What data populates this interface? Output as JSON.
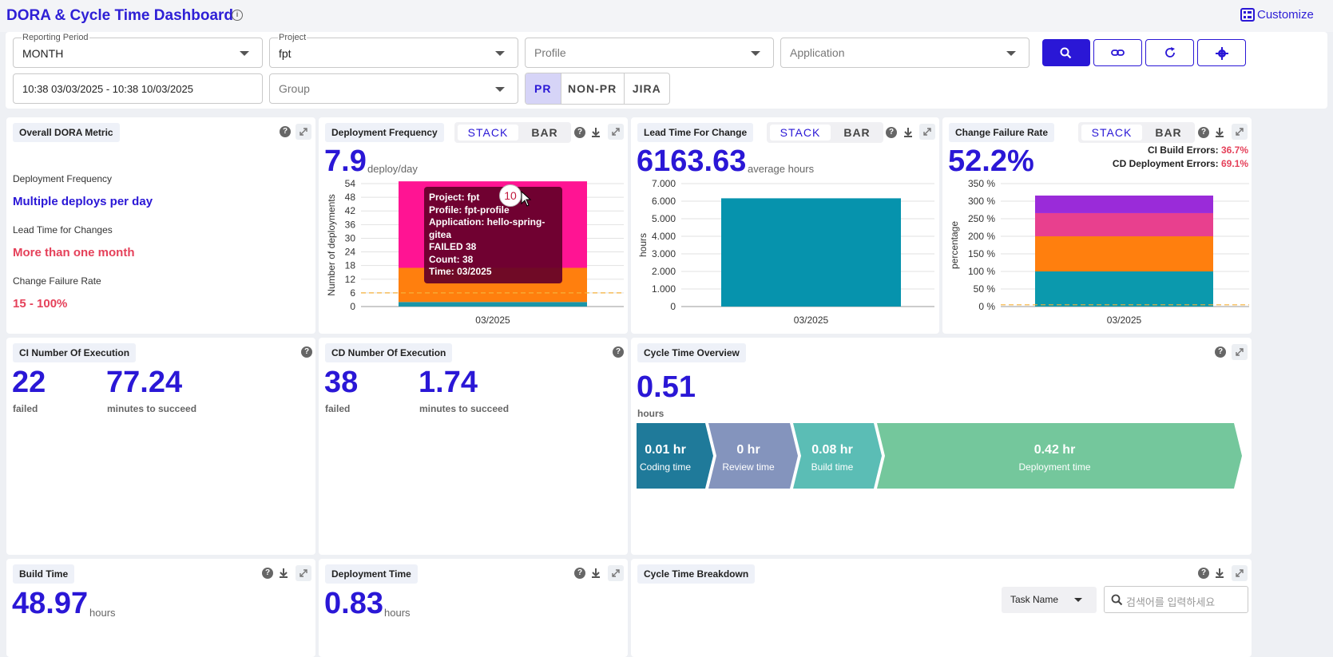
{
  "header": {
    "title": "DORA & Cycle Time Dashboard",
    "info_icon": "info-icon",
    "customize_label": "Customize"
  },
  "filters": {
    "reporting_period": {
      "label": "Reporting Period",
      "value": "MONTH"
    },
    "project": {
      "label": "Project",
      "value": "fpt"
    },
    "profile": {
      "placeholder": "Profile"
    },
    "application": {
      "placeholder": "Application"
    },
    "date_range": {
      "value": "10:38 03/03/2025 - 10:38 10/03/2025"
    },
    "group": {
      "placeholder": "Group"
    },
    "type_tabs": [
      "PR",
      "NON-PR",
      "JIRA"
    ],
    "active_type": "PR"
  },
  "overall": {
    "title": "Overall DORA Metric",
    "items": [
      {
        "label": "Deployment Frequency",
        "value": "Multiple deploys per day",
        "color": "#2a17d6"
      },
      {
        "label": "Lead Time for Changes",
        "value": "More than one month",
        "color": "#e5415a"
      },
      {
        "label": "Change Failure Rate",
        "value": "15 - 100%",
        "color": "#e5415a"
      }
    ]
  },
  "toggle": {
    "stack": "STACK",
    "bar": "BAR"
  },
  "deploy_freq": {
    "title": "Deployment Frequency",
    "value": "7.9",
    "unit": "deploy/day",
    "tooltip": [
      "Project: fpt",
      "Profile: fpt-profile",
      "Application: hello-spring-gitea",
      "FAILED 38",
      "Count: 38",
      "Time: 03/2025"
    ],
    "badge": "10"
  },
  "lead_time": {
    "title": "Lead Time For Change",
    "value": "6163.63",
    "unit": "average hours"
  },
  "cfr": {
    "title": "Change Failure Rate",
    "value": "52.2%",
    "ci_label": "CI Build Errors:",
    "ci_value": "36.7%",
    "cd_label": "CD Deployment Errors:",
    "cd_value": "69.1%"
  },
  "ci_exec": {
    "title": "CI Number Of Execution",
    "failed": "22",
    "failed_label": "failed",
    "minutes": "77.24",
    "minutes_label": "minutes to succeed"
  },
  "cd_exec": {
    "title": "CD Number Of Execution",
    "failed": "38",
    "failed_label": "failed",
    "minutes": "1.74",
    "minutes_label": "minutes to succeed"
  },
  "cycle_overview": {
    "title": "Cycle Time Overview",
    "value": "0.51",
    "unit": "hours",
    "stages": [
      {
        "value": "0.01 hr",
        "label": "Coding time",
        "color": "#1f7a9a"
      },
      {
        "value": "0 hr",
        "label": "Review time",
        "color": "#8494bd"
      },
      {
        "value": "0.08 hr",
        "label": "Build time",
        "color": "#5bbdb5"
      },
      {
        "value": "0.42 hr",
        "label": "Deployment time",
        "color": "#74c79c"
      }
    ]
  },
  "build_time": {
    "title": "Build Time",
    "value": "48.97",
    "unit": "hours"
  },
  "deploy_time": {
    "title": "Deployment Time",
    "value": "0.83",
    "unit": "hours"
  },
  "cycle_breakdown": {
    "title": "Cycle Time Breakdown",
    "select_value": "Task Name",
    "search_placeholder": "검색어를 입력하세요"
  },
  "chart_data": [
    {
      "type": "bar",
      "title": "Deployment Frequency",
      "categories": [
        "03/2025"
      ],
      "ylabel": "Number of deployments",
      "ylim": [
        0,
        54
      ],
      "yticks": [
        0,
        6,
        12,
        18,
        24,
        30,
        36,
        42,
        48,
        54
      ],
      "threshold": 6,
      "stacked": true,
      "series": [
        {
          "values": [
            2
          ],
          "color": "#1a95a8"
        },
        {
          "values": [
            15
          ],
          "color": "#ff7f0e"
        },
        {
          "values": [
            38
          ],
          "color": "#ff1493"
        }
      ]
    },
    {
      "type": "bar",
      "title": "Lead Time For Change",
      "categories": [
        "03/2025"
      ],
      "ylabel": "hours",
      "ylim": [
        0,
        7000
      ],
      "yticks": [
        "0",
        "1.000",
        "2.000",
        "3.000",
        "4.000",
        "5.000",
        "6.000",
        "7.000"
      ],
      "series": [
        {
          "values": [
            6163.63
          ],
          "color": "#0693ad"
        }
      ]
    },
    {
      "type": "bar",
      "title": "Change Failure Rate",
      "categories": [
        "03/2025"
      ],
      "ylabel": "percentage",
      "ylim": [
        0,
        350
      ],
      "yticks": [
        "0 %",
        "50 %",
        "100 %",
        "150 %",
        "200 %",
        "250 %",
        "300 %",
        "350 %"
      ],
      "threshold": 5,
      "stacked": true,
      "series": [
        {
          "values": [
            100
          ],
          "color": "#0b99ad"
        },
        {
          "values": [
            100
          ],
          "color": "#ff7f0e"
        },
        {
          "values": [
            66
          ],
          "color": "#e8408e"
        },
        {
          "values": [
            50
          ],
          "color": "#9a2bd9"
        }
      ]
    }
  ]
}
